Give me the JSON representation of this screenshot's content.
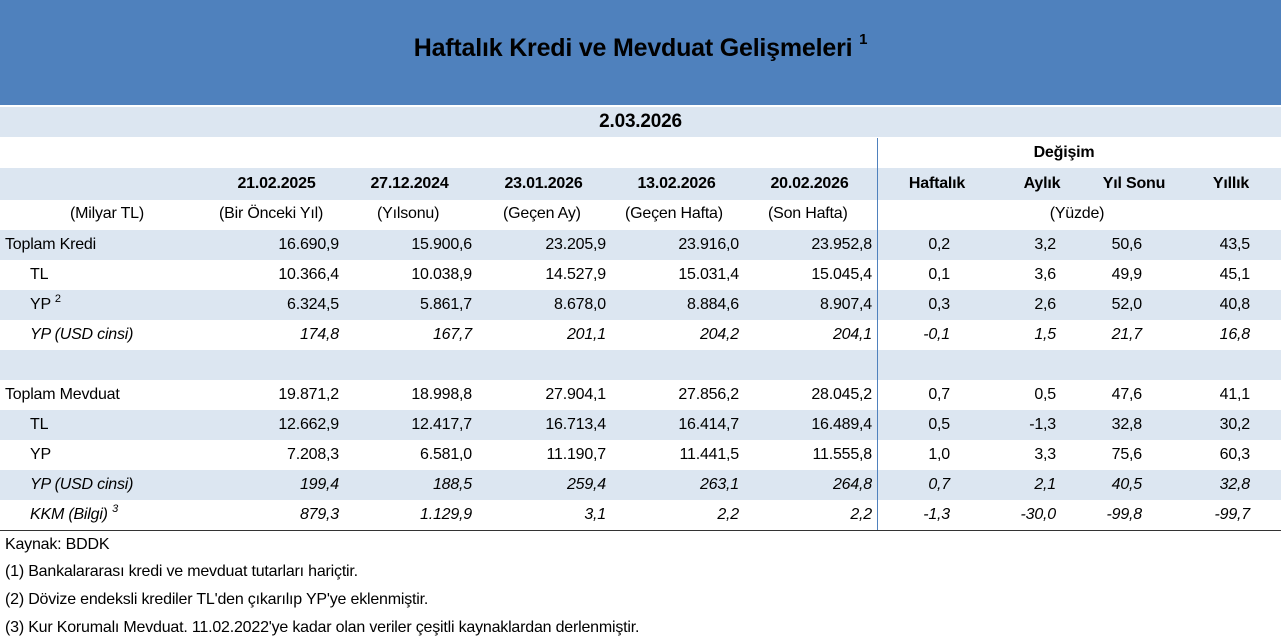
{
  "header": {
    "title": "Haftalık Kredi ve Mevduat Gelişmeleri",
    "title_note": "1",
    "date": "2.03.2026"
  },
  "table": {
    "group_header": "Değişim",
    "columns": [
      {
        "date": "21.02.2025",
        "sub": "(Bir Önceki Yıl)"
      },
      {
        "date": "27.12.2024",
        "sub": "(Yılsonu)"
      },
      {
        "date": "23.01.2026",
        "sub": "(Geçen Ay)"
      },
      {
        "date": "13.02.2026",
        "sub": "(Geçen Hafta)"
      },
      {
        "date": "20.02.2026",
        "sub": "(Son Hafta)"
      }
    ],
    "change_columns": [
      "Haftalık",
      "Aylık",
      "Yıl Sonu",
      "Yıllık"
    ],
    "unit": "(Milyar TL)",
    "change_unit": "(Yüzde)",
    "rows": [
      {
        "label": "Toplam Kredi",
        "values": [
          "16.690,9",
          "15.900,6",
          "23.205,9",
          "23.916,0",
          "23.952,8"
        ],
        "changes": [
          "0,2",
          "3,2",
          "50,6",
          "43,5"
        ]
      },
      {
        "label": "TL",
        "values": [
          "10.366,4",
          "10.038,9",
          "14.527,9",
          "15.031,4",
          "15.045,4"
        ],
        "changes": [
          "0,1",
          "3,6",
          "49,9",
          "45,1"
        ]
      },
      {
        "label": "YP",
        "note": "2",
        "values": [
          "6.324,5",
          "5.861,7",
          "8.678,0",
          "8.884,6",
          "8.907,4"
        ],
        "changes": [
          "0,3",
          "2,6",
          "52,0",
          "40,8"
        ]
      },
      {
        "label": "YP (USD cinsi)",
        "values": [
          "174,8",
          "167,7",
          "201,1",
          "204,2",
          "204,1"
        ],
        "changes": [
          "-0,1",
          "1,5",
          "21,7",
          "16,8"
        ]
      },
      {
        "label": "Toplam Mevduat",
        "values": [
          "19.871,2",
          "18.998,8",
          "27.904,1",
          "27.856,2",
          "28.045,2"
        ],
        "changes": [
          "0,7",
          "0,5",
          "47,6",
          "41,1"
        ]
      },
      {
        "label": "TL",
        "values": [
          "12.662,9",
          "12.417,7",
          "16.713,4",
          "16.414,7",
          "16.489,4"
        ],
        "changes": [
          "0,5",
          "-1,3",
          "32,8",
          "30,2"
        ]
      },
      {
        "label": "YP",
        "values": [
          "7.208,3",
          "6.581,0",
          "11.190,7",
          "11.441,5",
          "11.555,8"
        ],
        "changes": [
          "1,0",
          "3,3",
          "75,6",
          "60,3"
        ]
      },
      {
        "label": "YP (USD cinsi)",
        "values": [
          "199,4",
          "188,5",
          "259,4",
          "263,1",
          "264,8"
        ],
        "changes": [
          "0,7",
          "2,1",
          "40,5",
          "32,8"
        ]
      },
      {
        "label": "KKM (Bilgi)",
        "note": "3",
        "values": [
          "879,3",
          "1.129,9",
          "3,1",
          "2,2",
          "2,2"
        ],
        "changes": [
          "-1,3",
          "-30,0",
          "-99,8",
          "-99,7"
        ]
      }
    ]
  },
  "footer": {
    "source": "Kaynak: BDDK",
    "notes": [
      "(1) Bankalararası kredi ve mevduat tutarları hariçtir.",
      "(2) Dövize endeksli krediler TL'den çıkarılıp YP'ye eklenmiştir.",
      "(3) Kur Korumalı Mevduat. 11.02.2022'ye kadar olan veriler çeşitli kaynaklardan derlenmiştir."
    ]
  }
}
